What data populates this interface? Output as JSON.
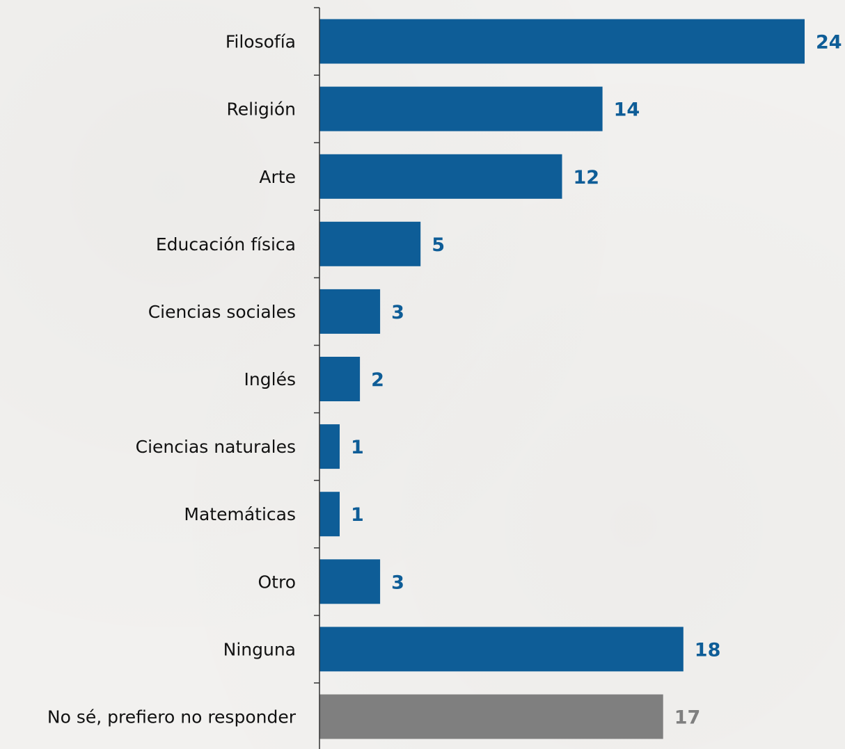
{
  "chart_data": {
    "type": "bar",
    "orientation": "horizontal",
    "categories": [
      "Filosofía",
      "Religión",
      "Arte",
      "Educación física",
      "Ciencias sociales",
      "Inglés",
      "Ciencias naturales",
      "Matemáticas",
      "Otro",
      "Ninguna",
      "No sé, prefiero no responder"
    ],
    "values": [
      24,
      14,
      12,
      5,
      3,
      2,
      1,
      1,
      3,
      18,
      17
    ],
    "value_labels": [
      "24",
      "14",
      "12",
      "5",
      "3",
      "2",
      "1",
      "1",
      "3",
      "18",
      "17"
    ],
    "bar_colors": [
      "#0e5d97",
      "#0e5d97",
      "#0e5d97",
      "#0e5d97",
      "#0e5d97",
      "#0e5d97",
      "#0e5d97",
      "#0e5d97",
      "#0e5d97",
      "#0e5d97",
      "#7f7f7f"
    ],
    "label_colors": [
      "#0e5d97",
      "#0e5d97",
      "#0e5d97",
      "#0e5d97",
      "#0e5d97",
      "#0e5d97",
      "#0e5d97",
      "#0e5d97",
      "#0e5d97",
      "#0e5d97",
      "#7f7f7f"
    ],
    "xlim": [
      0,
      24
    ],
    "title": "",
    "xlabel": "",
    "ylabel": "",
    "grid": false,
    "legend": "none"
  },
  "colors": {
    "primary": "#0e5d97",
    "neutral": "#7f7f7f",
    "background": "#f2f1ef",
    "axis": "#333333"
  }
}
